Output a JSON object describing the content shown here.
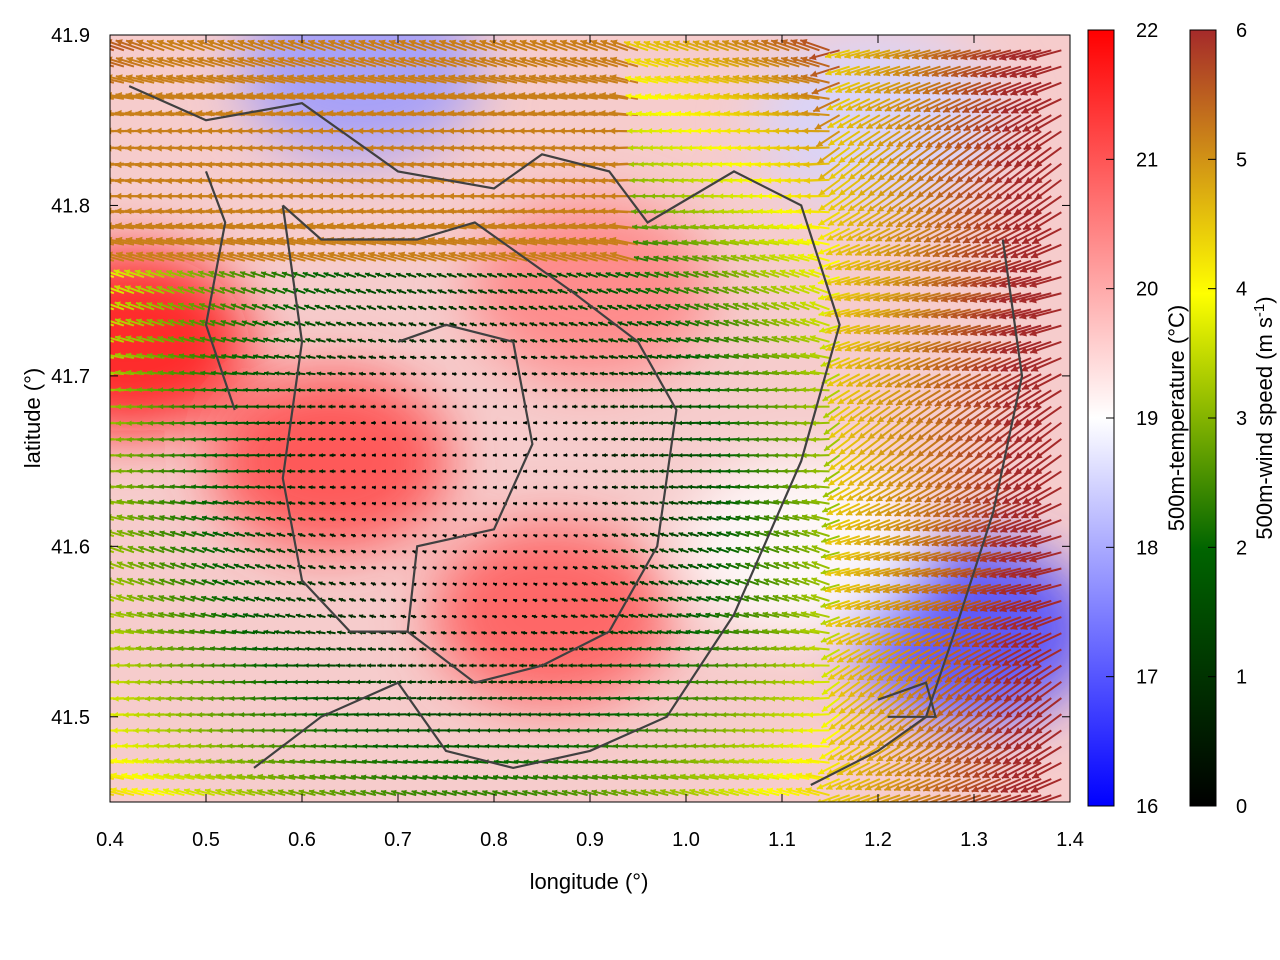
{
  "chart_data": {
    "type": "heatmap",
    "title": "",
    "xlabel": "longitude (°)",
    "ylabel": "latitude (°)",
    "xlim": [
      0.4,
      1.4
    ],
    "ylim": [
      41.45,
      41.9
    ],
    "x_ticks": [
      {
        "value": 0.4,
        "label": "0.4"
      },
      {
        "value": 0.5,
        "label": "0.5"
      },
      {
        "value": 0.6,
        "label": "0.6"
      },
      {
        "value": 0.7,
        "label": "0.7"
      },
      {
        "value": 0.8,
        "label": "0.8"
      },
      {
        "value": 0.9,
        "label": "0.9"
      },
      {
        "value": 1.0,
        "label": "1.0"
      },
      {
        "value": 1.1,
        "label": "1.1"
      },
      {
        "value": 1.2,
        "label": "1.2"
      },
      {
        "value": 1.3,
        "label": "1.3"
      },
      {
        "value": 1.4,
        "label": "1.4"
      }
    ],
    "y_ticks": [
      {
        "value": 41.5,
        "label": "41.5"
      },
      {
        "value": 41.6,
        "label": "41.6"
      },
      {
        "value": 41.7,
        "label": "41.7"
      },
      {
        "value": 41.8,
        "label": "41.8"
      },
      {
        "value": 41.9,
        "label": "41.9"
      }
    ],
    "temperature_colorbar": {
      "label": "500m-temperature (°C)",
      "range": [
        16,
        22
      ],
      "ticks": [
        {
          "value": 16,
          "label": "16"
        },
        {
          "value": 17,
          "label": "17"
        },
        {
          "value": 18,
          "label": "18"
        },
        {
          "value": 19,
          "label": "19"
        },
        {
          "value": 20,
          "label": "20"
        },
        {
          "value": 21,
          "label": "21"
        },
        {
          "value": 22,
          "label": "22"
        }
      ],
      "colors": [
        "#0000ff",
        "#ffffff",
        "#ff0000"
      ]
    },
    "wind_colorbar": {
      "label": "500m-wind speed (m s",
      "label_sup": "-1",
      "label_end": ")",
      "range": [
        0,
        6
      ],
      "ticks": [
        {
          "value": 0,
          "label": "0"
        },
        {
          "value": 1,
          "label": "1"
        },
        {
          "value": 2,
          "label": "2"
        },
        {
          "value": 3,
          "label": "3"
        },
        {
          "value": 4,
          "label": "4"
        },
        {
          "value": 5,
          "label": "5"
        },
        {
          "value": 6,
          "label": "6"
        }
      ],
      "colors": [
        "#000000",
        "#006400",
        "#ffff00",
        "#a52a2a"
      ]
    },
    "temperature_field_regions": [
      {
        "lon": 0.63,
        "lat": 41.65,
        "temp": 21.2
      },
      {
        "lon": 0.86,
        "lat": 41.56,
        "temp": 21.0
      },
      {
        "lon": 0.42,
        "lat": 41.72,
        "temp": 21.8
      },
      {
        "lon": 0.9,
        "lat": 41.75,
        "temp": 20.5
      },
      {
        "lon": 0.66,
        "lat": 41.88,
        "temp": 17.8
      },
      {
        "lon": 1.3,
        "lat": 41.55,
        "temp": 16.8
      },
      {
        "lon": 1.12,
        "lat": 41.6,
        "temp": 19.0
      },
      {
        "lon": 1.2,
        "lat": 41.85,
        "temp": 18.5
      }
    ],
    "coastline_color": "#404040"
  }
}
